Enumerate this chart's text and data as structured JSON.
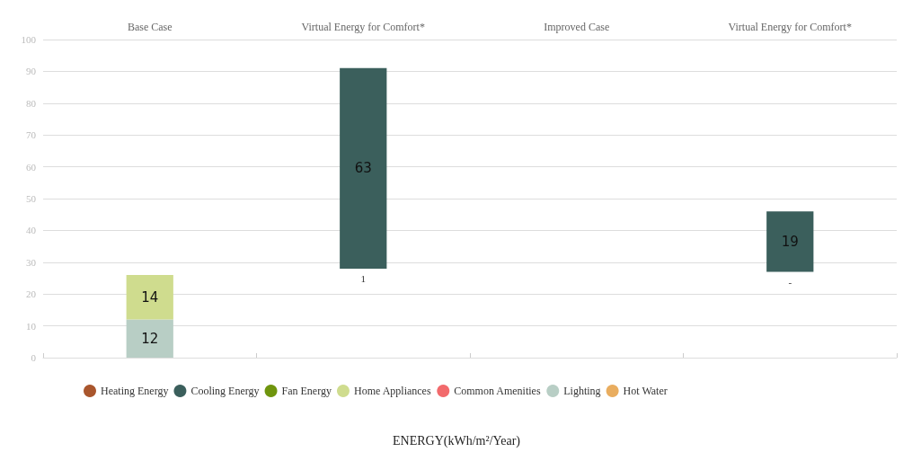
{
  "chart_data": {
    "type": "bar",
    "categories": [
      "Base Case",
      "Virtual Energy for Comfort*",
      "Improved Case",
      "Virtual Energy for Comfort*"
    ],
    "stacked": true,
    "data_labels": true,
    "ylim": [
      0,
      100
    ],
    "yticks": [
      0,
      10,
      20,
      30,
      40,
      50,
      60,
      70,
      80,
      90,
      100
    ],
    "grid": "y",
    "legend": "bottom",
    "series": [
      {
        "name": "Heating Energy",
        "color": "#a9562d",
        "values": [
          null,
          null,
          null,
          null
        ]
      },
      {
        "name": "Cooling Energy",
        "color": "#3b5f5c",
        "values": [
          null,
          63,
          null,
          19
        ],
        "base": [
          null,
          28,
          null,
          27
        ]
      },
      {
        "name": "Fan Energy",
        "color": "#6f950e",
        "values": [
          null,
          null,
          null,
          null
        ]
      },
      {
        "name": "Home Appliances",
        "color": "#cfdc8e",
        "values": [
          14,
          null,
          null,
          null
        ]
      },
      {
        "name": "Common Amenities",
        "color": "#f26a6c",
        "values": [
          null,
          null,
          null,
          null
        ]
      },
      {
        "name": "Lighting",
        "color": "#b8cec5",
        "values": [
          12,
          null,
          null,
          null
        ]
      },
      {
        "name": "Hot Water",
        "color": "#e9ad5f",
        "values": [
          null,
          null,
          null,
          null
        ]
      }
    ],
    "annotations": [
      "1",
      "-",
      "ENERGY(kWh/m²/Year)"
    ]
  }
}
